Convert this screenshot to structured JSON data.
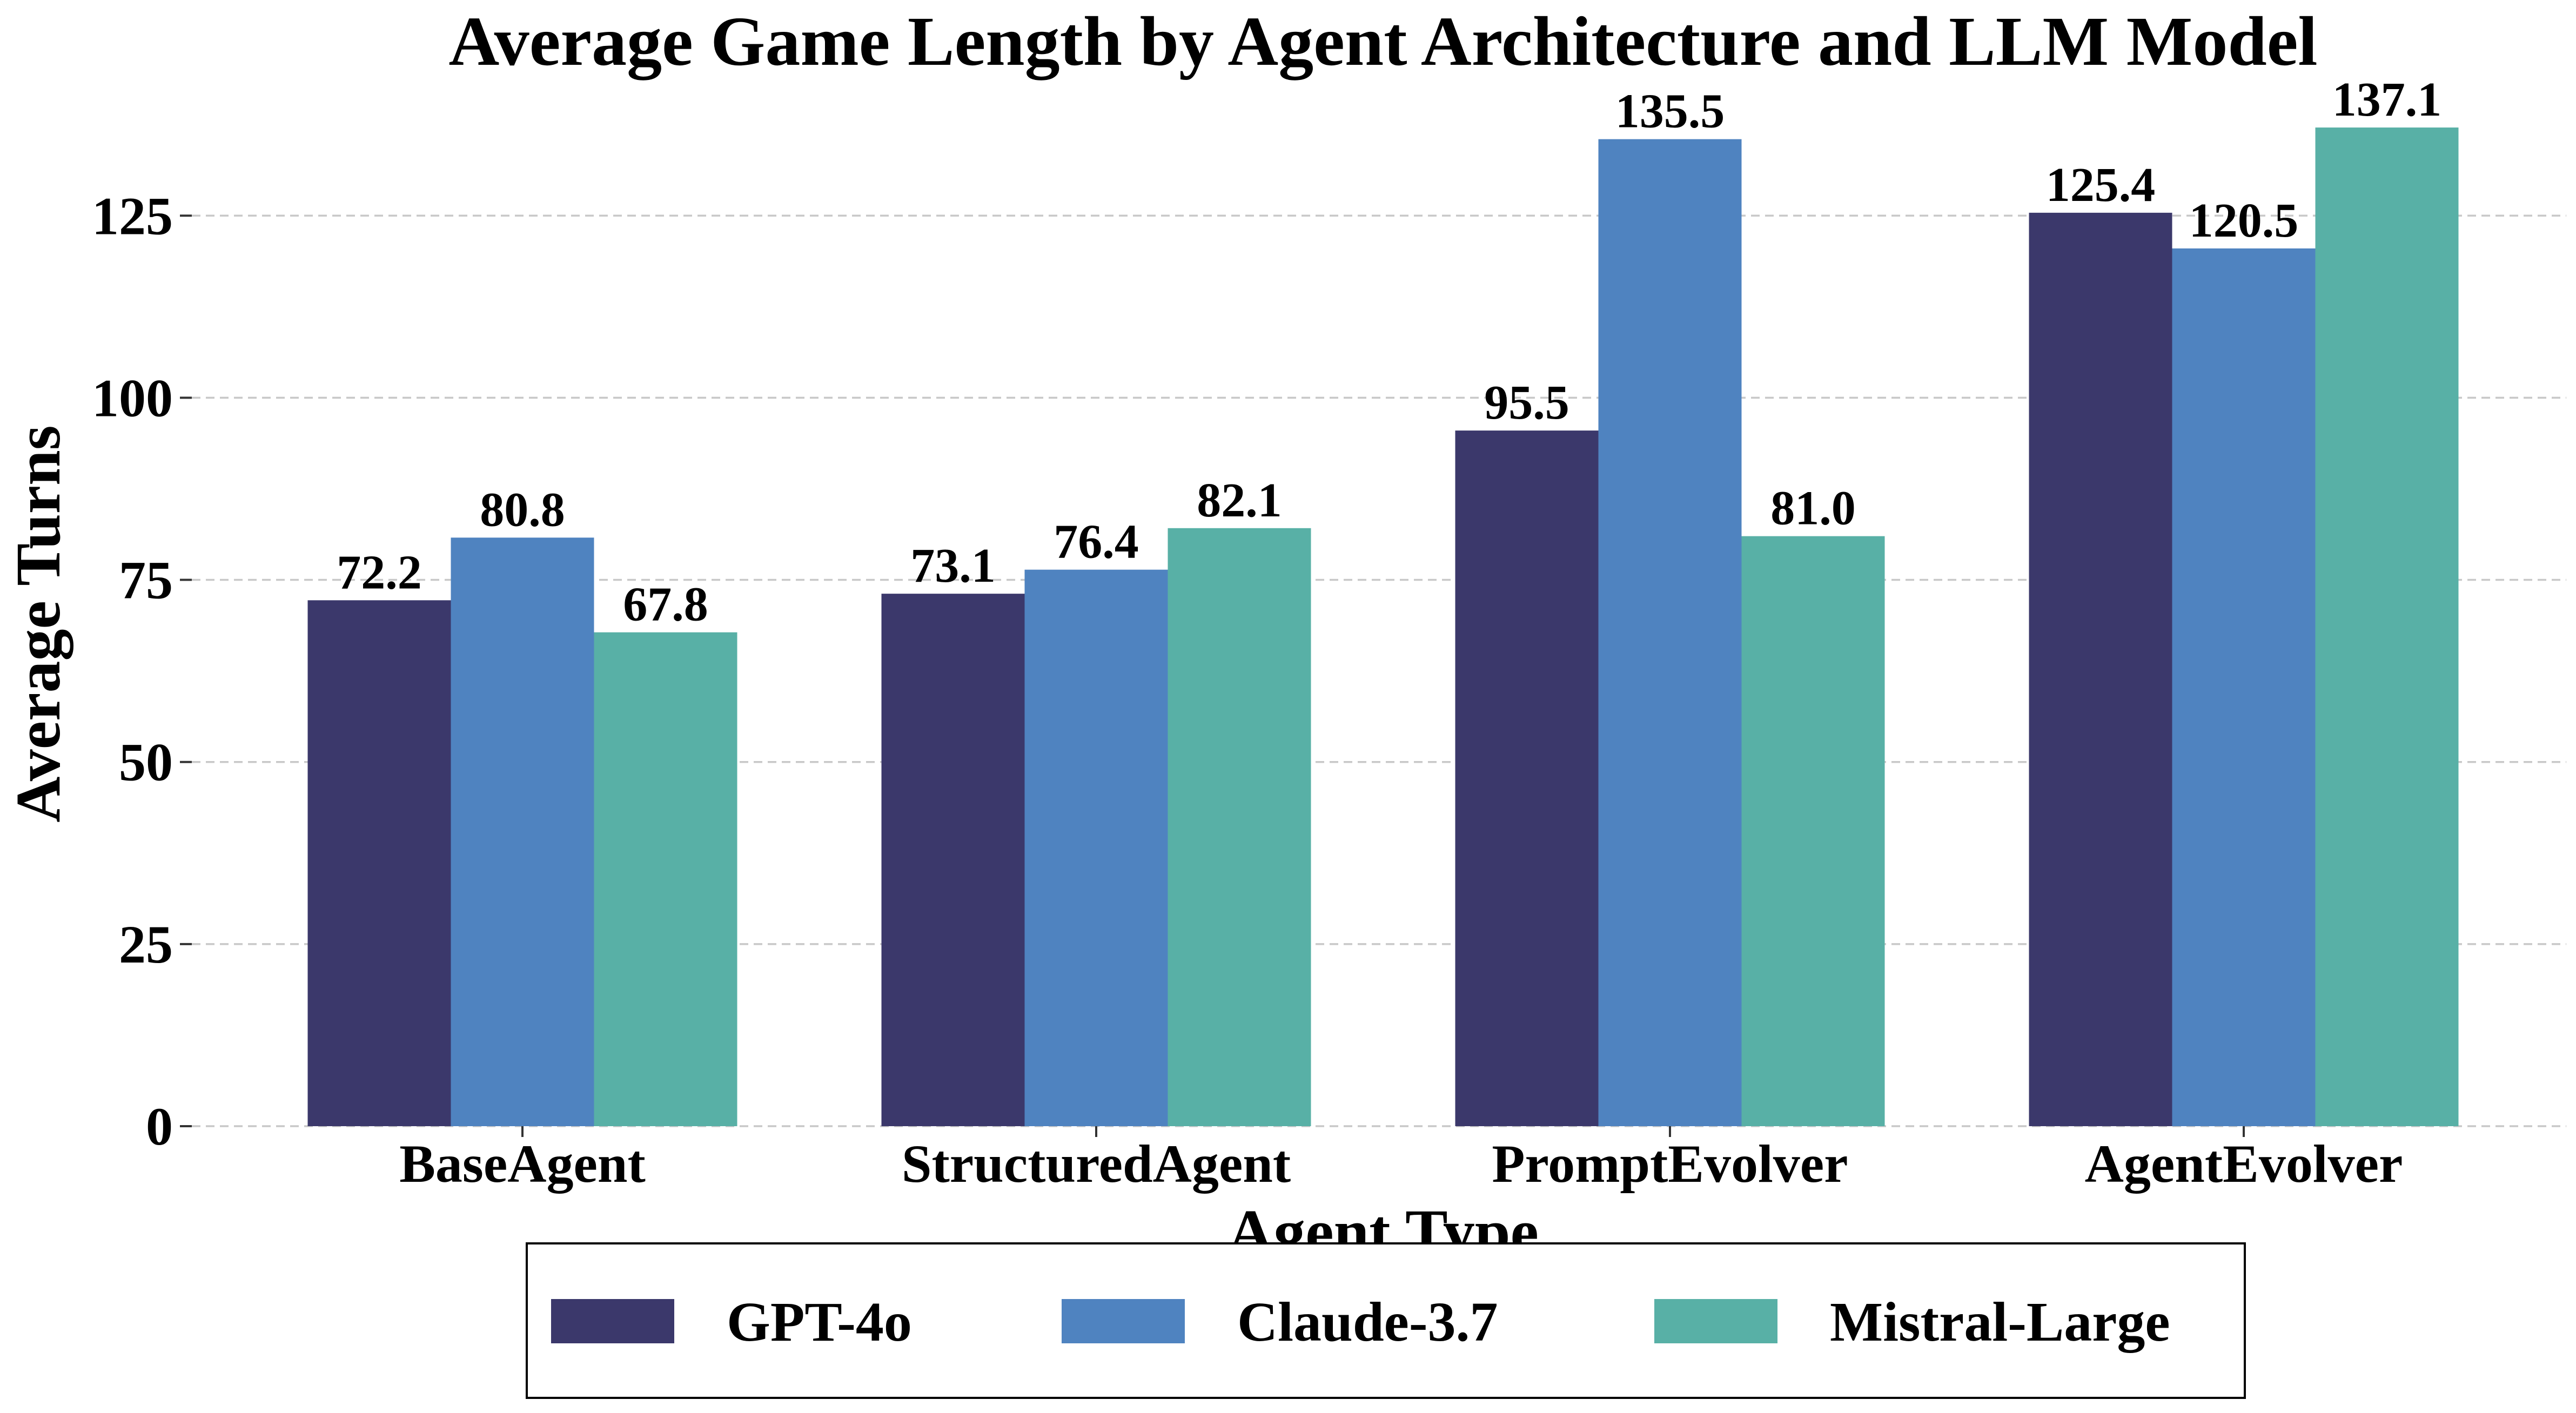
{
  "chart_data": {
    "type": "bar",
    "title": "Average Game Length by Agent Architecture and LLM Model",
    "xlabel": "Agent Type",
    "ylabel": "Average Turns",
    "categories": [
      "BaseAgent",
      "StructuredAgent",
      "PromptEvolver",
      "AgentEvolver"
    ],
    "series": [
      {
        "name": "GPT-4o",
        "color": "#3b386b",
        "values": [
          72.2,
          73.1,
          95.5,
          125.4
        ]
      },
      {
        "name": "Claude-3.7",
        "color": "#4f83c0",
        "values": [
          80.8,
          76.4,
          135.5,
          120.5
        ]
      },
      {
        "name": "Mistral-Large",
        "color": "#58b0a6",
        "values": [
          67.8,
          82.1,
          81.0,
          137.1
        ]
      }
    ],
    "ylim": [
      0,
      142
    ],
    "yticks": [
      0,
      25,
      50,
      75,
      100,
      125
    ],
    "grid": "y-dashed",
    "legend_position": "bottom-center"
  }
}
